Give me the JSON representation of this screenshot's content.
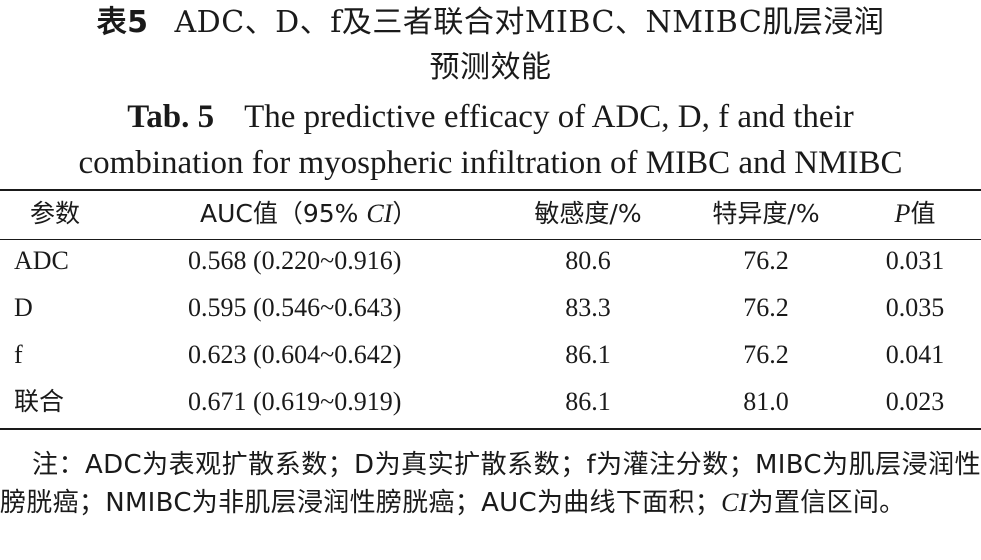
{
  "title_cn": {
    "label": "表5",
    "line1": "ADC、D、f及三者联合对MIBC、NMIBC肌层浸润",
    "line2": "预测效能"
  },
  "title_en": {
    "label": "Tab. 5",
    "line1": "The predictive efficacy of ADC, D, f and their",
    "line2": "combination for myospheric infiltration of MIBC and NMIBC"
  },
  "table": {
    "headers": {
      "param": "参数",
      "auc_prefix": "AUC值（95% ",
      "auc_ci": "CI",
      "auc_suffix": "）",
      "sensitivity": "敏感度/%",
      "specificity": "特异度/%",
      "p_symbol": "P",
      "p_suffix": "值"
    },
    "rows": [
      {
        "param": "ADC",
        "auc": "0.568 (0.220~0.916)",
        "sensitivity": "80.6",
        "specificity": "76.2",
        "p": "0.031"
      },
      {
        "param": "D",
        "auc": "0.595 (0.546~0.643)",
        "sensitivity": "83.3",
        "specificity": "76.2",
        "p": "0.035"
      },
      {
        "param": "f",
        "auc": "0.623 (0.604~0.642)",
        "sensitivity": "86.1",
        "specificity": "76.2",
        "p": "0.041"
      },
      {
        "param": "联合",
        "auc": "0.671 (0.619~0.919)",
        "sensitivity": "86.1",
        "specificity": "81.0",
        "p": "0.023"
      }
    ]
  },
  "note": {
    "text": "注：ADC为表观扩散系数；D为真实扩散系数；f为灌注分数；MIBC为肌层浸润性膀胱癌；NMIBC为非肌层浸润性膀胱癌；AUC为曲线下面积；",
    "ci": "CI",
    "tail": "为置信区间。"
  }
}
